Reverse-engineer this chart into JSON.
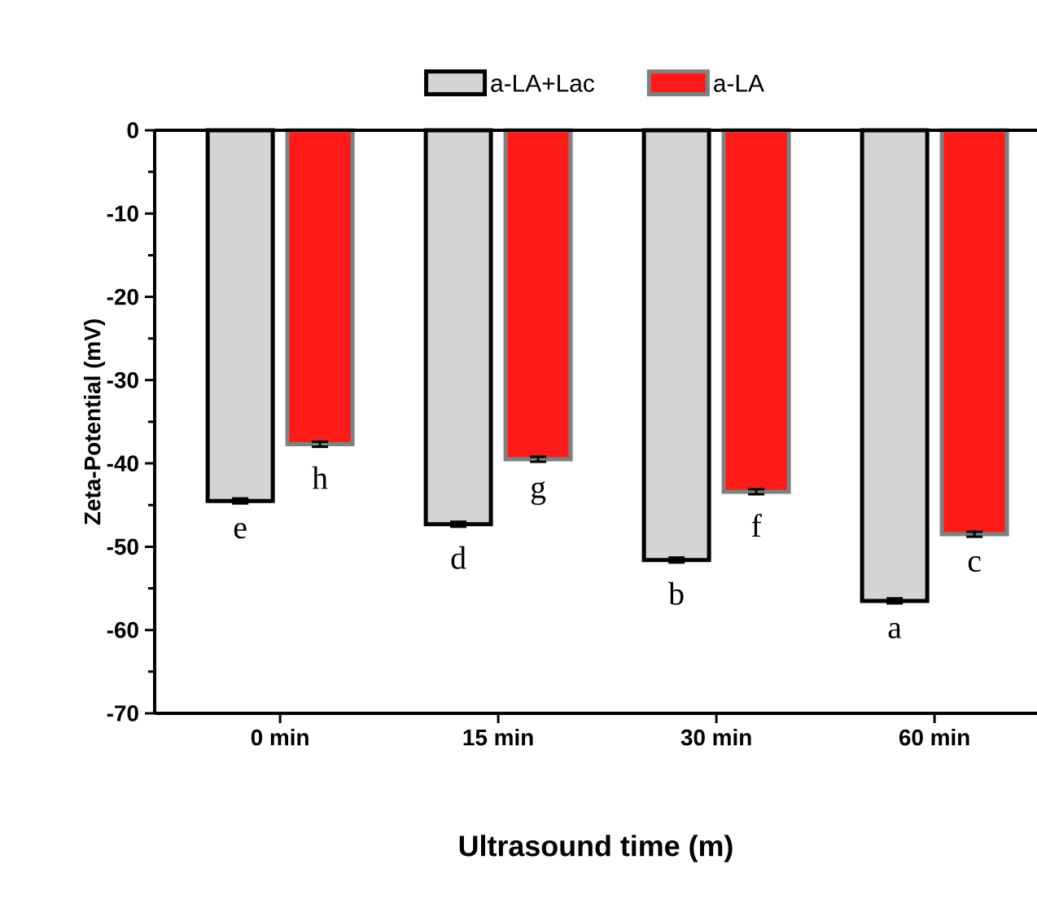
{
  "chart_data": {
    "type": "bar",
    "xlabel": "Ultrasound time (m)",
    "ylabel": "Zeta-Potential (mV)",
    "categories": [
      "0 min",
      "15 min",
      "30 min",
      "60 min"
    ],
    "series": [
      {
        "name": "a-LA+Lac",
        "color": "#d4d4d4",
        "values": [
          -44.5,
          -47.3,
          -51.6,
          -56.5
        ],
        "errors": [
          0.3,
          0.3,
          0.3,
          0.3
        ]
      },
      {
        "name": "a-LA",
        "color": "#ff1a1a",
        "values": [
          -37.7,
          -39.5,
          -43.4,
          -48.5
        ],
        "errors": [
          0.3,
          0.3,
          0.3,
          0.3
        ]
      }
    ],
    "ylim": [
      -70,
      0
    ],
    "yticks": [
      -70,
      -60,
      -50,
      -40,
      -30,
      -20,
      -10,
      0
    ],
    "legend": "top",
    "grid": false,
    "annotations": [
      "e",
      "h",
      "d",
      "g",
      "b",
      "f",
      "a",
      "c"
    ]
  }
}
